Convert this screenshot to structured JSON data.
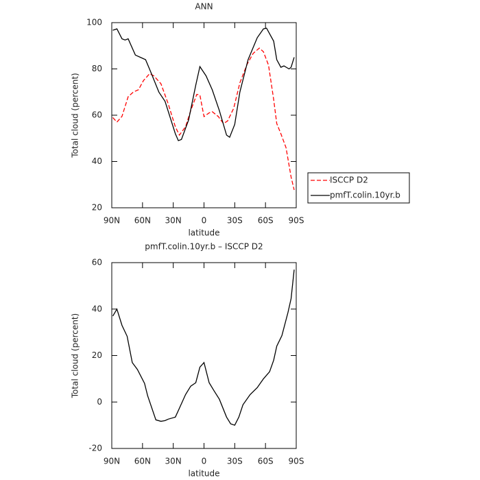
{
  "chart_data": [
    {
      "type": "line",
      "title": "ANN",
      "xlabel": "latitude",
      "ylabel": "Total cloud (percent)",
      "xlim": [
        90,
        -90
      ],
      "xticks": [
        {
          "value": 90,
          "label": "90N"
        },
        {
          "value": 60,
          "label": "60N"
        },
        {
          "value": 30,
          "label": "30N"
        },
        0,
        {
          "value": -30,
          "label": "30S"
        },
        {
          "value": -60,
          "label": "60S"
        },
        {
          "value": -90,
          "label": "90S"
        }
      ],
      "ylim": [
        20,
        100
      ],
      "yticks": [
        20,
        40,
        60,
        80,
        100
      ],
      "legend": "right",
      "series": [
        {
          "name": "ISCCP D2",
          "color": "#ff0000",
          "dash": true,
          "x": [
            89,
            85,
            80,
            74,
            69,
            64,
            59,
            53,
            49,
            42,
            35,
            28,
            24,
            18,
            13,
            7,
            4,
            0,
            -5,
            -8,
            -14,
            -19,
            -23,
            -29,
            -35,
            -42,
            -48,
            -54,
            -58,
            -63,
            -68,
            -71,
            -75,
            -80,
            -85,
            -88
          ],
          "values": [
            59,
            57,
            59.5,
            68,
            70,
            71,
            75,
            78,
            77,
            73.6,
            65,
            55,
            51.4,
            55,
            62,
            69,
            68.7,
            59.4,
            61,
            61.5,
            59.4,
            56.4,
            57.5,
            63,
            74,
            82,
            86.7,
            89,
            87.4,
            81.6,
            66.8,
            56.4,
            52,
            46,
            33.3,
            27.7
          ]
        },
        {
          "name": "pmfT.colin.10yr.b",
          "color": "#000000",
          "dash": false,
          "x": [
            89,
            85,
            80,
            77,
            74,
            67,
            62,
            57,
            52,
            44,
            38,
            28,
            25,
            22,
            15,
            8,
            4,
            -2,
            -8,
            -15,
            -22,
            -25,
            -30,
            -35,
            -43,
            -52,
            -58,
            -61,
            -68,
            -71,
            -75,
            -78,
            -83,
            -85,
            -88
          ],
          "values": [
            96.7,
            97.3,
            93,
            92.5,
            93,
            86,
            85,
            84,
            78.7,
            70,
            66,
            52,
            49,
            49.5,
            58,
            73,
            81,
            77,
            71,
            62,
            51.4,
            50.5,
            56,
            70,
            84,
            93.5,
            97.3,
            97.6,
            92,
            84,
            80.7,
            81.3,
            80,
            80.7,
            85
          ]
        }
      ]
    },
    {
      "type": "line",
      "title": "pmfT.colin.10yr.b  –  ISCCP D2",
      "xlabel": "latitude",
      "ylabel": "Total cloud (percent)",
      "xlim": [
        90,
        -90
      ],
      "xticks": [
        {
          "value": 90,
          "label": "90N"
        },
        {
          "value": 60,
          "label": "60N"
        },
        {
          "value": 30,
          "label": "30N"
        },
        0,
        {
          "value": -30,
          "label": "30S"
        },
        {
          "value": -60,
          "label": "60S"
        },
        {
          "value": -90,
          "label": "90S"
        }
      ],
      "ylim": [
        -20,
        60
      ],
      "yticks": [
        -20,
        0,
        20,
        40,
        60
      ],
      "color": "#000000",
      "x": [
        89,
        85,
        80,
        75,
        70,
        65,
        58,
        55,
        47,
        42,
        38,
        35,
        28,
        24,
        18,
        13,
        8,
        4,
        0,
        -5,
        -10,
        -15,
        -22,
        -26,
        -30,
        -34,
        -38,
        -45,
        -52,
        -58,
        -64,
        -68,
        -71,
        -76,
        -82,
        -85,
        -88
      ],
      "values": [
        37,
        40,
        33,
        28.3,
        17,
        14,
        8,
        2.7,
        -7.7,
        -8.3,
        -8,
        -7.4,
        -6.5,
        -2.7,
        3.2,
        6.8,
        8.3,
        15,
        17,
        8.3,
        4.7,
        1.2,
        -6.5,
        -9.4,
        -10,
        -6.5,
        -1.2,
        3.2,
        6.2,
        10,
        13,
        18,
        24,
        28.6,
        38.6,
        44.5,
        57
      ]
    }
  ]
}
